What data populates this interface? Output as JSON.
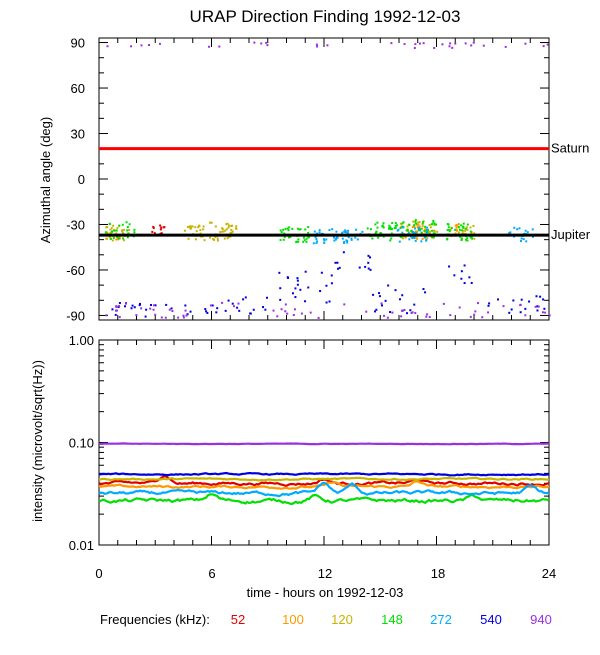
{
  "title": "URAP Direction Finding  1992-12-03",
  "x_axis_label": "time - hours on 1992-12-03",
  "frequency_legend_label": "Frequencies (kHz):",
  "colors": {
    "52": "#e00000",
    "100": "#ff9900",
    "120": "#c8b400",
    "148": "#00e000",
    "272": "#00aaff",
    "540": "#0000e0",
    "940": "#9b30e0",
    "saturn_line": "#ff0000",
    "jupiter_line": "#000000"
  },
  "chart_data": [
    {
      "type": "scatter",
      "name": "azimuth-panel",
      "xlabel": "",
      "ylabel": "Azimuthal angle (deg)",
      "xlim": [
        0,
        24
      ],
      "ylim": [
        -93,
        93
      ],
      "x_ticks": [
        0,
        6,
        12,
        18,
        24
      ],
      "y_ticks": [
        "90",
        "60",
        "30",
        "0",
        "-30",
        "-60",
        "-90"
      ],
      "y_tick_values": [
        90,
        60,
        30,
        0,
        -30,
        -60,
        -90
      ],
      "reference_lines": [
        {
          "label": "Saturn",
          "y": 20,
          "color": "#ff0000"
        },
        {
          "label": "Jupiter",
          "y": -37,
          "color": "#000000"
        }
      ],
      "series": [
        {
          "freq": "52",
          "color": "#e00000",
          "clusters": [
            {
              "x": [
                2.7,
                3.5
              ],
              "y": -34,
              "spread": 4,
              "n": 14
            }
          ]
        },
        {
          "freq": "100",
          "color": "#ff9900",
          "clusters": [
            {
              "x": [
                0.4,
                1.2
              ],
              "y": -36,
              "spread": 4,
              "n": 14
            },
            {
              "x": [
                16.4,
                17.6
              ],
              "y": -34,
              "spread": 5,
              "n": 30
            },
            {
              "x": [
                18.5,
                19.3
              ],
              "y": -33,
              "spread": 4,
              "n": 12
            }
          ]
        },
        {
          "freq": "120",
          "color": "#c8b400",
          "clusters": [
            {
              "x": [
                0.2,
                1.6
              ],
              "y": -35,
              "spread": 5,
              "n": 30
            },
            {
              "x": [
                4.5,
                5.6
              ],
              "y": -35,
              "spread": 5,
              "n": 28
            },
            {
              "x": [
                5.8,
                7.3
              ],
              "y": -34,
              "spread": 6,
              "n": 36
            },
            {
              "x": [
                16.0,
                18.0
              ],
              "y": -33,
              "spread": 6,
              "n": 40
            },
            {
              "x": [
                19.0,
                20.0
              ],
              "y": -35,
              "spread": 5,
              "n": 18
            }
          ]
        },
        {
          "freq": "148",
          "color": "#00e000",
          "clusters": [
            {
              "x": [
                0.3,
                1.9
              ],
              "y": -33,
              "spread": 6,
              "n": 26
            },
            {
              "x": [
                9.5,
                11.3
              ],
              "y": -36,
              "spread": 5,
              "n": 34
            },
            {
              "x": [
                14.0,
                15.6
              ],
              "y": -34,
              "spread": 6,
              "n": 30
            },
            {
              "x": [
                15.5,
                18.0
              ],
              "y": -32,
              "spread": 6,
              "n": 52
            },
            {
              "x": [
                18.5,
                20.0
              ],
              "y": -34,
              "spread": 6,
              "n": 34
            }
          ]
        },
        {
          "freq": "272",
          "color": "#00aaff",
          "clusters": [
            {
              "x": [
                11.3,
                12.7
              ],
              "y": -37,
              "spread": 5,
              "n": 26
            },
            {
              "x": [
                12.8,
                13.3
              ],
              "y": -36,
              "spread": 4,
              "n": 8
            },
            {
              "x": [
                13.0,
                14.0
              ],
              "y": -37,
              "spread": 5,
              "n": 18
            },
            {
              "x": [
                15.8,
                17.5
              ],
              "y": -36,
              "spread": 5,
              "n": 28
            },
            {
              "x": [
                21.8,
                23.2
              ],
              "y": -36,
              "spread": 5,
              "n": 22
            }
          ]
        },
        {
          "freq": "540",
          "color": "#0000e0",
          "clusters": [
            {
              "x": [
                0.5,
                2.0
              ],
              "y": -84,
              "spread": 5,
              "n": 10
            },
            {
              "x": [
                2.0,
                6.0
              ],
              "y": -86,
              "spread": 5,
              "n": 14
            },
            {
              "x": [
                6.0,
                9.0
              ],
              "y": -83,
              "spread": 6,
              "n": 16
            },
            {
              "x": [
                9.0,
                12.5
              ],
              "y": -70,
              "spread": 12,
              "n": 22
            },
            {
              "x": [
                12.5,
                14.5
              ],
              "y": -55,
              "spread": 8,
              "n": 12
            },
            {
              "x": [
                14.5,
                17.5
              ],
              "y": -78,
              "spread": 10,
              "n": 18
            },
            {
              "x": [
                18.5,
                20.0
              ],
              "y": -62,
              "spread": 6,
              "n": 8
            },
            {
              "x": [
                20.0,
                24.0
              ],
              "y": -82,
              "spread": 6,
              "n": 16
            }
          ]
        },
        {
          "freq": "940",
          "color": "#9b30e0",
          "clusters": [
            {
              "x": [
                0.0,
                24.0
              ],
              "y": -86,
              "spread": 5,
              "n": 70
            },
            {
              "x": [
                0.0,
                24.0
              ],
              "y": 89,
              "spread": 2,
              "n": 34
            }
          ]
        }
      ]
    },
    {
      "type": "line",
      "name": "intensity-panel",
      "xlabel": "time - hours on 1992-12-03",
      "ylabel": "intensity (microvolt/sqrt(Hz))",
      "xlim": [
        0,
        24
      ],
      "ylim": [
        0.01,
        1.0
      ],
      "yscale": "log",
      "x_ticks": [
        "0",
        "6",
        "12",
        "18",
        "24"
      ],
      "x_tick_values": [
        0,
        6,
        12,
        18,
        24
      ],
      "y_ticks": [
        "1.00",
        "0.10",
        "0.01"
      ],
      "y_tick_values": [
        1.0,
        0.1,
        0.01
      ],
      "series": [
        {
          "freq": "52",
          "color": "#e00000",
          "level": 0.04,
          "noise": 0.06,
          "bumps": [
            [
              3.5,
              0.2
            ],
            [
              12.0,
              0.1
            ],
            [
              17.0,
              0.08
            ]
          ]
        },
        {
          "freq": "100",
          "color": "#ff9900",
          "level": 0.037,
          "noise": 0.05,
          "bumps": [
            [
              17.0,
              0.12
            ],
            [
              12.5,
              0.1
            ]
          ]
        },
        {
          "freq": "120",
          "color": "#c8b400",
          "level": 0.044,
          "noise": 0.03,
          "bumps": []
        },
        {
          "freq": "148",
          "color": "#00e000",
          "level": 0.027,
          "noise": 0.08,
          "bumps": [
            [
              6.0,
              0.15
            ],
            [
              11.5,
              0.1
            ],
            [
              20.0,
              0.1
            ]
          ]
        },
        {
          "freq": "272",
          "color": "#00aaff",
          "level": 0.032,
          "noise": 0.07,
          "bumps": [
            [
              12.0,
              0.25
            ],
            [
              13.5,
              0.2
            ],
            [
              23.0,
              0.15
            ]
          ]
        },
        {
          "freq": "540",
          "color": "#0000e0",
          "level": 0.049,
          "noise": 0.03,
          "bumps": []
        },
        {
          "freq": "940",
          "color": "#9b30e0",
          "level": 0.097,
          "noise": 0.01,
          "bumps": []
        }
      ]
    }
  ]
}
